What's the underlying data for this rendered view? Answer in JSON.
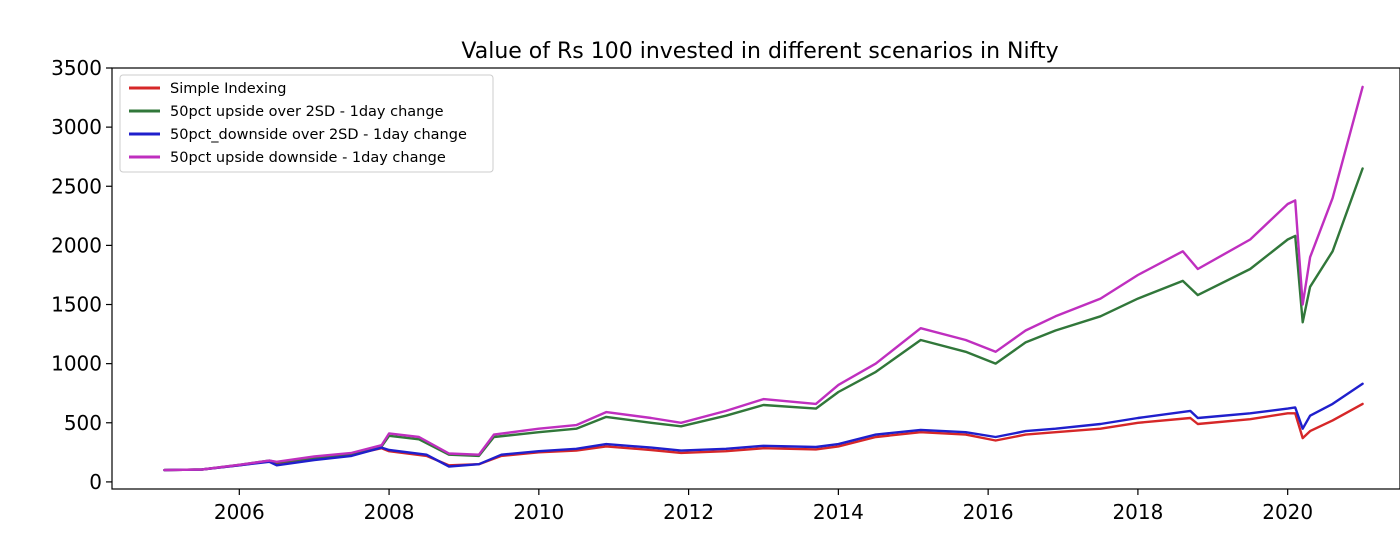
{
  "chart_data": {
    "type": "line",
    "title": "Value of Rs 100 invested in different scenarios in Nifty",
    "xlabel": "",
    "ylabel": "",
    "xlim": [
      2004.3,
      2021.5
    ],
    "ylim": [
      -60,
      3500
    ],
    "x_ticks": [
      2006,
      2008,
      2010,
      2012,
      2014,
      2016,
      2018,
      2020
    ],
    "x_tick_labels": [
      "2006",
      "2008",
      "2010",
      "2012",
      "2014",
      "2016",
      "2018",
      "2020"
    ],
    "y_ticks": [
      0,
      500,
      1000,
      1500,
      2000,
      2500,
      3000,
      3500
    ],
    "y_tick_labels": [
      "0",
      "500",
      "1000",
      "1500",
      "2000",
      "2500",
      "3000",
      "3500"
    ],
    "grid": false,
    "legend_position": "top-left",
    "series": [
      {
        "name": "Simple Indexing",
        "color": "#d62728",
        "x": [
          2005.0,
          2005.5,
          2006.0,
          2006.4,
          2006.5,
          2007.0,
          2007.5,
          2007.9,
          2008.0,
          2008.5,
          2008.8,
          2009.2,
          2009.5,
          2010.0,
          2010.5,
          2010.9,
          2011.5,
          2011.9,
          2012.5,
          2013.0,
          2013.7,
          2014.0,
          2014.5,
          2015.1,
          2015.7,
          2016.1,
          2016.5,
          2016.9,
          2017.5,
          2018.0,
          2018.7,
          2018.8,
          2019.5,
          2020.0,
          2020.1,
          2020.2,
          2020.3,
          2020.6,
          2021.0
        ],
        "y": [
          100,
          105,
          140,
          175,
          160,
          200,
          230,
          285,
          260,
          220,
          140,
          150,
          220,
          250,
          265,
          300,
          270,
          245,
          260,
          285,
          275,
          300,
          380,
          420,
          400,
          350,
          400,
          420,
          450,
          500,
          540,
          490,
          530,
          580,
          580,
          370,
          430,
          520,
          660
        ]
      },
      {
        "name": "50pct upside over 2SD - 1day change",
        "color": "#31773a",
        "x": [
          2005.0,
          2005.5,
          2006.0,
          2006.4,
          2006.5,
          2007.0,
          2007.5,
          2007.9,
          2008.0,
          2008.4,
          2008.8,
          2009.2,
          2009.4,
          2010.0,
          2010.5,
          2010.9,
          2011.5,
          2011.9,
          2012.5,
          2013.0,
          2013.7,
          2014.0,
          2014.5,
          2015.1,
          2015.7,
          2016.1,
          2016.5,
          2016.9,
          2017.5,
          2018.0,
          2018.6,
          2018.8,
          2019.5,
          2020.0,
          2020.1,
          2020.2,
          2020.3,
          2020.6,
          2021.0
        ],
        "y": [
          100,
          105,
          145,
          180,
          165,
          205,
          240,
          300,
          390,
          360,
          230,
          220,
          380,
          420,
          450,
          550,
          500,
          470,
          560,
          650,
          620,
          760,
          930,
          1200,
          1100,
          1000,
          1180,
          1280,
          1400,
          1550,
          1700,
          1580,
          1800,
          2050,
          2080,
          1350,
          1650,
          1950,
          2650
        ]
      },
      {
        "name": "50pct_downside over 2SD - 1day change",
        "color": "#1f1fcc",
        "x": [
          2005.0,
          2005.5,
          2006.0,
          2006.4,
          2006.5,
          2007.0,
          2007.5,
          2007.9,
          2008.0,
          2008.5,
          2008.8,
          2009.2,
          2009.5,
          2010.0,
          2010.5,
          2010.9,
          2011.5,
          2011.9,
          2012.5,
          2013.0,
          2013.7,
          2014.0,
          2014.5,
          2015.1,
          2015.7,
          2016.1,
          2016.5,
          2016.9,
          2017.5,
          2018.0,
          2018.7,
          2018.8,
          2019.5,
          2020.0,
          2020.1,
          2020.2,
          2020.3,
          2020.6,
          2021.0
        ],
        "y": [
          100,
          105,
          140,
          170,
          140,
          185,
          220,
          290,
          270,
          230,
          130,
          150,
          230,
          260,
          280,
          320,
          290,
          265,
          280,
          305,
          295,
          320,
          400,
          440,
          420,
          380,
          430,
          450,
          490,
          540,
          600,
          540,
          580,
          620,
          630,
          450,
          560,
          660,
          830
        ]
      },
      {
        "name": "50pct upside downside - 1day change",
        "color": "#bf2fbf",
        "x": [
          2005.0,
          2005.5,
          2006.0,
          2006.4,
          2006.5,
          2007.0,
          2007.5,
          2007.9,
          2008.0,
          2008.4,
          2008.8,
          2009.2,
          2009.4,
          2010.0,
          2010.5,
          2010.9,
          2011.5,
          2011.9,
          2012.5,
          2013.0,
          2013.7,
          2014.0,
          2014.5,
          2015.1,
          2015.7,
          2016.1,
          2016.5,
          2016.9,
          2017.5,
          2018.0,
          2018.6,
          2018.8,
          2019.5,
          2020.0,
          2020.1,
          2020.2,
          2020.3,
          2020.6,
          2021.0
        ],
        "y": [
          100,
          105,
          145,
          180,
          170,
          215,
          245,
          310,
          410,
          380,
          240,
          230,
          400,
          450,
          480,
          590,
          540,
          500,
          600,
          700,
          660,
          820,
          1000,
          1300,
          1200,
          1100,
          1280,
          1400,
          1550,
          1750,
          1950,
          1800,
          2050,
          2350,
          2380,
          1500,
          1900,
          2400,
          3340
        ]
      }
    ]
  }
}
